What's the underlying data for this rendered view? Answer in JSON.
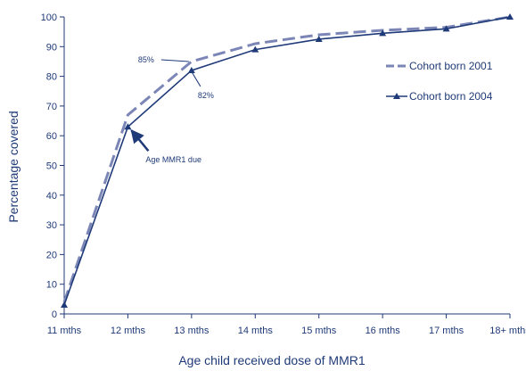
{
  "chart_data": {
    "type": "line",
    "title": "",
    "xlabel": "Age child received dose of MMR1",
    "ylabel": "Percentage covered",
    "categories": [
      "11 mths",
      "12 mths",
      "13 mths",
      "14 mths",
      "15 mths",
      "16 mths",
      "17 mths",
      "18+ mths"
    ],
    "ylim": [
      0,
      100
    ],
    "yticks": [
      0,
      10,
      20,
      30,
      40,
      50,
      60,
      70,
      80,
      90,
      100
    ],
    "grid": false,
    "legend_position": "right",
    "series": [
      {
        "name": "Cohort born 2001",
        "values": [
          4,
          67,
          85,
          91,
          94,
          95.5,
          96.5,
          100
        ],
        "color": "#7b86b6",
        "style": "dashed"
      },
      {
        "name": "Cohort born 2004",
        "values": [
          3,
          63,
          82,
          89,
          92.5,
          94.5,
          96,
          100
        ],
        "color": "#1f3a78",
        "style": "solid-triangle"
      }
    ],
    "annotations": [
      {
        "text": "85%",
        "category": "13 mths",
        "value": 85
      },
      {
        "text": "82%",
        "category": "13 mths",
        "value": 82
      },
      {
        "text": "Age MMR1 due",
        "category": "12 mths",
        "value": 63
      }
    ]
  }
}
